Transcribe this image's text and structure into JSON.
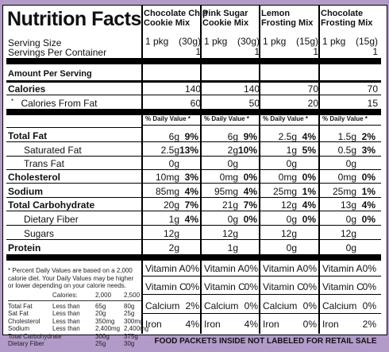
{
  "title": "Nutrition Facts",
  "columns": [
    {
      "name_line1": "Chocolate Chip",
      "name_line2": "Cookie Mix",
      "serving": "1 pkg",
      "serving_g": "(30g)",
      "servings": "1",
      "calories": "140",
      "fat_cal": "60",
      "total_fat": "6g",
      "total_fat_dv": "9%",
      "sat_fat": "2.5g",
      "sat_fat_dv": "13%",
      "trans_fat": "0g",
      "chol": "10mg",
      "chol_dv": "3%",
      "sodium": "85mg",
      "sodium_dv": "4%",
      "carb": "20g",
      "carb_dv": "7%",
      "fiber": "1g",
      "fiber_dv": "4%",
      "sugars": "12g",
      "protein": "2g",
      "vit_a": "0%",
      "vit_c": "0%",
      "calcium": "2%",
      "iron": "4%"
    },
    {
      "name_line1": "Pink Sugar",
      "name_line2": "Cookie Mix",
      "serving": "1 pkg",
      "serving_g": "(30g)",
      "servings": "1",
      "calories": "140",
      "fat_cal": "50",
      "total_fat": "6g",
      "total_fat_dv": "9%",
      "sat_fat": "2g",
      "sat_fat_dv": "10%",
      "trans_fat": "0g",
      "chol": "0mg",
      "chol_dv": "0%",
      "sodium": "95mg",
      "sodium_dv": "4%",
      "carb": "21g",
      "carb_dv": "7%",
      "fiber": "0g",
      "fiber_dv": "0%",
      "sugars": "12g",
      "protein": "1g",
      "vit_a": "0%",
      "vit_c": "0%",
      "calcium": "0%",
      "iron": "4%"
    },
    {
      "name_line1": "Lemon",
      "name_line2": "Frosting Mix",
      "serving": "1 pkg",
      "serving_g": "(15g)",
      "servings": "1",
      "calories": "70",
      "fat_cal": "20",
      "total_fat": "2.5g",
      "total_fat_dv": "4%",
      "sat_fat": "1g",
      "sat_fat_dv": "5%",
      "trans_fat": "0g",
      "chol": "0mg",
      "chol_dv": "0%",
      "sodium": "25mg",
      "sodium_dv": "1%",
      "carb": "12g",
      "carb_dv": "4%",
      "fiber": "0g",
      "fiber_dv": "0%",
      "sugars": "12g",
      "protein": "0g",
      "vit_a": "0%",
      "vit_c": "0%",
      "calcium": "0%",
      "iron": "0%"
    },
    {
      "name_line1": "Chocolate",
      "name_line2": "Frosting Mix",
      "serving": "1 pkg",
      "serving_g": "(15g)",
      "servings": "1",
      "calories": "70",
      "fat_cal": "15",
      "total_fat": "1.5g",
      "total_fat_dv": "2%",
      "sat_fat": "0.5g",
      "sat_fat_dv": "3%",
      "trans_fat": "0g",
      "chol": "0mg",
      "chol_dv": "0%",
      "sodium": "25mg",
      "sodium_dv": "1%",
      "carb": "13g",
      "carb_dv": "4%",
      "fiber": "0g",
      "fiber_dv": "0%",
      "sugars": "12g",
      "protein": "0g",
      "vit_a": "0%",
      "vit_c": "0%",
      "calcium": "0%",
      "iron": "2%"
    }
  ],
  "labels": {
    "serving_size": "Serving Size",
    "servings_per_container": "Servings Per Container",
    "amount_per_serving": "Amount Per Serving",
    "calories": "Calories",
    "calories_from_fat": "Calories From Fat",
    "daily_value": "% Daily Value *",
    "total_fat": "Total Fat",
    "saturated_fat": "Saturated Fat",
    "trans_fat": "Trans Fat",
    "cholesterol": "Cholesterol",
    "sodium": "Sodium",
    "total_carbohydrate": "Total Carbohydrate",
    "dietary_fiber": "Dietary Fiber",
    "sugars": "Sugars",
    "protein": "Protein",
    "vitamin_a": "Vitamin A",
    "vitamin_c": "Vitamin C",
    "calcium": "Calcium",
    "iron": "Iron"
  },
  "footnote": {
    "line1": "* Percent Daily Values are based on a 2,000",
    "line2": "calorie diet. Your Daily Values may be higher",
    "line3": "or lower depending on your calorie needs.",
    "header": [
      "Calories:",
      "2,000",
      "2,500"
    ],
    "rows": [
      [
        "Total Fat",
        "Less than",
        "65g",
        "80g"
      ],
      [
        "Sat Fat",
        "Less than",
        "20g",
        "25g"
      ],
      [
        "Cholesterol",
        "Less than",
        "350mg",
        "300mg"
      ],
      [
        "Sodium",
        "Less than",
        "2,400mg",
        "2,400mg"
      ],
      [
        "Total Carbohydrate",
        "",
        "300g",
        "375g"
      ],
      [
        "Dietary Fiber",
        "",
        "25g",
        "30g"
      ]
    ]
  },
  "footer": "FOOD PACKETS INSIDE NOT LABELED FOR RETAIL SALE"
}
